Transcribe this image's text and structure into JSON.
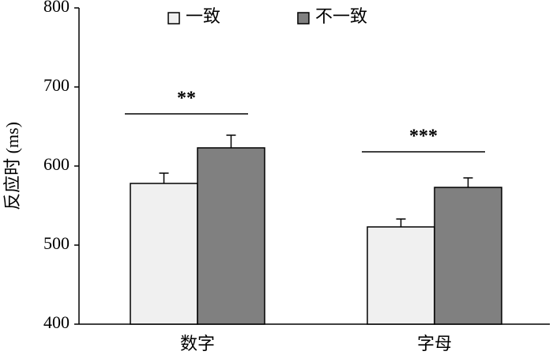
{
  "chart_data": {
    "type": "bar",
    "ylabel": "反应时 (ms)",
    "categories": [
      "数字",
      "字母"
    ],
    "series": [
      {
        "name": "一致",
        "color": "#f0f0f0",
        "values": [
          578,
          523
        ],
        "errors": [
          13,
          10
        ]
      },
      {
        "name": "不一致",
        "color": "#808080",
        "values": [
          623,
          573
        ],
        "errors": [
          16,
          12
        ]
      }
    ],
    "annotations": [
      "**",
      "***"
    ],
    "ylim": [
      400,
      800
    ],
    "yticks": [
      400,
      500,
      600,
      700,
      800
    ]
  }
}
